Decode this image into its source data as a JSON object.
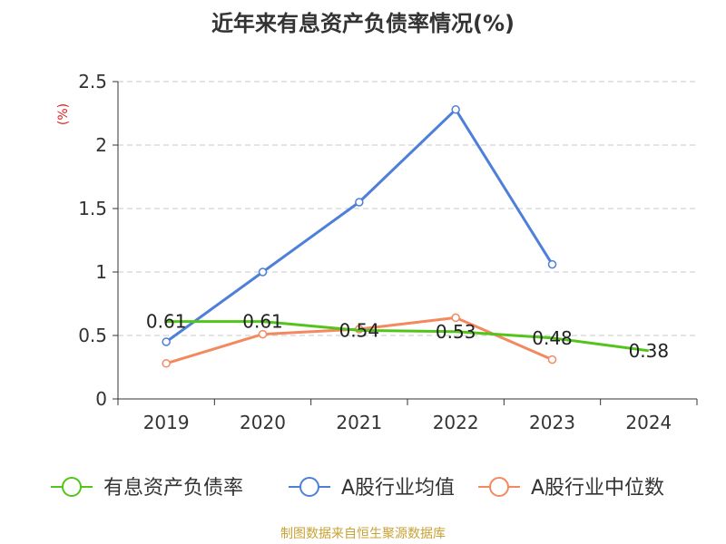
{
  "chart_data": {
    "type": "line",
    "title": "近年来有息资产负债率情况(%)",
    "ylabel": "(%)",
    "xlabel": "",
    "categories": [
      "2019",
      "2020",
      "2021",
      "2022",
      "2023",
      "2024"
    ],
    "ylim": [
      0,
      2.5
    ],
    "yticks": [
      "0",
      "0.5",
      "1",
      "1.5",
      "2",
      "2.5"
    ],
    "grid": true,
    "legend_position": "bottom",
    "series": [
      {
        "name": "有息资产负债率",
        "color": "#52c41a",
        "values": [
          0.61,
          0.61,
          0.54,
          0.53,
          0.48,
          0.38
        ],
        "labels": [
          "0.61",
          "0.61",
          "0.54",
          "0.53",
          "0.48",
          "0.38"
        ]
      },
      {
        "name": "A股行业均值",
        "color": "#4e7fd9",
        "values": [
          0.45,
          1.0,
          1.55,
          2.28,
          1.06,
          null
        ]
      },
      {
        "name": "A股行业中位数",
        "color": "#f4895f",
        "values": [
          0.28,
          0.51,
          0.55,
          0.64,
          0.31,
          null
        ]
      }
    ]
  },
  "source": "制图数据来自恒生聚源数据库"
}
